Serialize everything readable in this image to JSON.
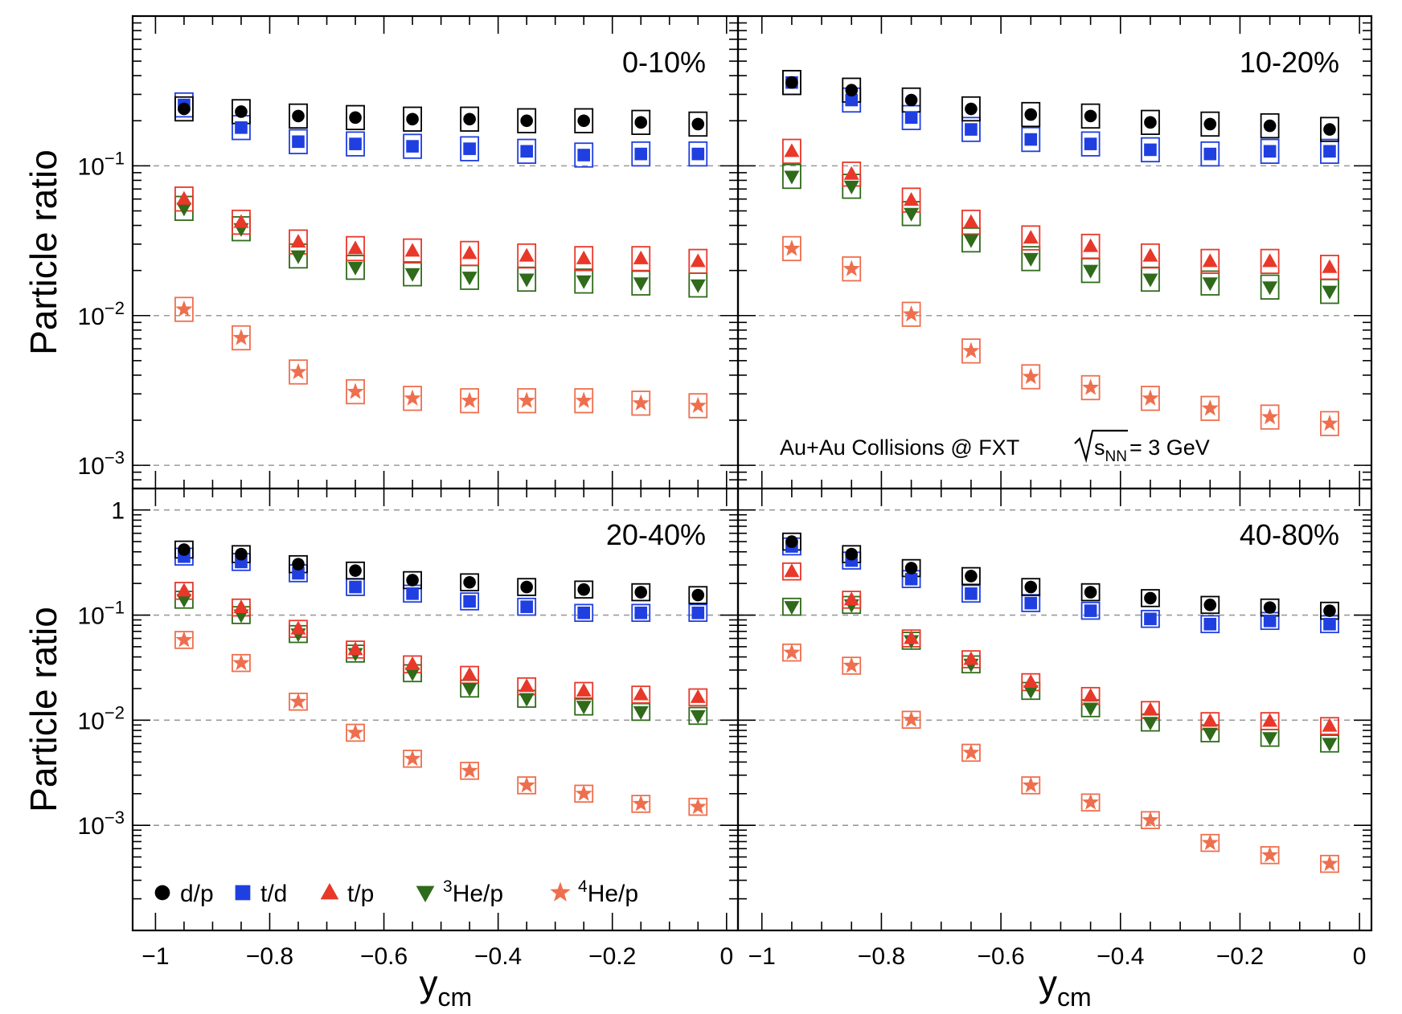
{
  "chart_data": {
    "type": "scatter",
    "xlabel": "y",
    "xlabel_sub": "cm",
    "ylabel": "Particle ratio",
    "x_axis": {
      "range": [
        -1.04,
        0.02
      ],
      "ticks": [
        -1,
        -0.8,
        -0.6,
        -0.4,
        -0.2,
        0
      ],
      "tick_labels": [
        "−1",
        "−0.8",
        "−0.6",
        "−0.4",
        "−0.2",
        "0"
      ]
    },
    "y_axis_top": {
      "scale": "log",
      "range": [
        0.0007,
        1.0
      ],
      "ticks": [
        0.1,
        0.01,
        0.001
      ],
      "tick_labels": [
        {
          "base": "10",
          "exp": "−1"
        },
        {
          "base": "10",
          "exp": "−2"
        },
        {
          "base": "10",
          "exp": "−3"
        }
      ]
    },
    "y_axis_bottom": {
      "scale": "log",
      "range": [
        0.0001,
        1.6
      ],
      "ticks": [
        1,
        0.1,
        0.01,
        0.001
      ],
      "tick_labels": [
        {
          "base": "1",
          "exp": ""
        },
        {
          "base": "10",
          "exp": "−1"
        },
        {
          "base": "10",
          "exp": "−2"
        },
        {
          "base": "10",
          "exp": "−3"
        }
      ]
    },
    "grid": "dashed horizontal lines at decades",
    "annotation": {
      "prefix": "Au+Au Collisions @ FXT ",
      "sqrt_label": "s",
      "sqrt_sub": "NN",
      "suffix": " = 3 GeV"
    },
    "legend": [
      {
        "key": "dp",
        "pre": "",
        "text": "d/p",
        "marker": "circle",
        "color": "#000000"
      },
      {
        "key": "td",
        "pre": "",
        "text": "t/d",
        "marker": "square",
        "color": "#1f3fe0"
      },
      {
        "key": "tp",
        "pre": "",
        "text": "t/p",
        "marker": "triangle-up",
        "color": "#e8382a"
      },
      {
        "key": "he3",
        "pre": "3",
        "text": "He/p",
        "marker": "triangle-down",
        "color": "#2f6b1a"
      },
      {
        "key": "he4",
        "pre": "4",
        "text": "He/p",
        "marker": "star",
        "color": "#ee6f4e"
      }
    ],
    "x": [
      -0.95,
      -0.85,
      -0.75,
      -0.65,
      -0.55,
      -0.45,
      -0.35,
      -0.25,
      -0.15,
      -0.05
    ],
    "panels": [
      {
        "label": "0-10%",
        "series": {
          "dp": [
            0.24,
            0.23,
            0.215,
            0.21,
            0.205,
            0.205,
            0.2,
            0.2,
            0.195,
            0.19
          ],
          "td": [
            0.255,
            0.18,
            0.145,
            0.14,
            0.135,
            0.13,
            0.125,
            0.118,
            0.12,
            0.12
          ],
          "tp": [
            0.06,
            0.042,
            0.031,
            0.028,
            0.027,
            0.026,
            0.025,
            0.024,
            0.024,
            0.023
          ],
          "he3": [
            0.052,
            0.038,
            0.025,
            0.021,
            0.019,
            0.018,
            0.0175,
            0.017,
            0.0165,
            0.016
          ],
          "he4": [
            0.011,
            0.0071,
            0.0042,
            0.0031,
            0.0028,
            0.0027,
            0.0027,
            0.0027,
            0.0026,
            0.0025
          ]
        }
      },
      {
        "label": "10-20%",
        "series": {
          "dp": [
            0.36,
            0.32,
            0.275,
            0.24,
            0.22,
            0.215,
            0.195,
            0.19,
            0.185,
            0.175
          ],
          "td": [
            0.36,
            0.275,
            0.21,
            0.175,
            0.15,
            0.14,
            0.128,
            0.12,
            0.125,
            0.125
          ],
          "tp": [
            0.125,
            0.088,
            0.059,
            0.042,
            0.033,
            0.029,
            0.025,
            0.023,
            0.023,
            0.021
          ],
          "he3": [
            0.085,
            0.073,
            0.048,
            0.032,
            0.024,
            0.02,
            0.0175,
            0.0165,
            0.0155,
            0.0145
          ],
          "he4": [
            0.028,
            0.0205,
            0.0102,
            0.0058,
            0.0039,
            0.0033,
            0.0028,
            0.0024,
            0.0021,
            0.0019
          ]
        }
      },
      {
        "label": "20-40%",
        "series": {
          "dp": [
            0.42,
            0.38,
            0.305,
            0.265,
            0.215,
            0.205,
            0.185,
            0.175,
            0.165,
            0.155
          ],
          "td": [
            0.36,
            0.32,
            0.25,
            0.185,
            0.16,
            0.135,
            0.12,
            0.105,
            0.105,
            0.105
          ],
          "tp": [
            0.17,
            0.118,
            0.074,
            0.047,
            0.034,
            0.027,
            0.021,
            0.019,
            0.0175,
            0.0165
          ],
          "he3": [
            0.14,
            0.1,
            0.066,
            0.043,
            0.028,
            0.02,
            0.016,
            0.0135,
            0.012,
            0.011
          ],
          "he4": [
            0.058,
            0.035,
            0.015,
            0.0076,
            0.0043,
            0.0033,
            0.0024,
            0.002,
            0.0016,
            0.0015
          ]
        }
      },
      {
        "label": "40-80%",
        "series": {
          "dp": [
            0.5,
            0.38,
            0.28,
            0.235,
            0.185,
            0.165,
            0.145,
            0.125,
            0.118,
            0.11
          ],
          "td": [
            0.45,
            0.33,
            0.22,
            0.16,
            0.13,
            0.11,
            0.092,
            0.082,
            0.088,
            0.082
          ],
          "tp": [
            0.26,
            0.14,
            0.06,
            0.038,
            0.023,
            0.017,
            0.0125,
            0.0098,
            0.0098,
            0.0088
          ],
          "he3": [
            0.12,
            0.125,
            0.057,
            0.034,
            0.019,
            0.013,
            0.0095,
            0.0075,
            0.0068,
            0.006
          ],
          "he4": [
            0.044,
            0.033,
            0.0101,
            0.0049,
            0.0024,
            0.00165,
            0.00112,
            0.00068,
            0.00052,
            0.00043
          ]
        }
      }
    ]
  }
}
